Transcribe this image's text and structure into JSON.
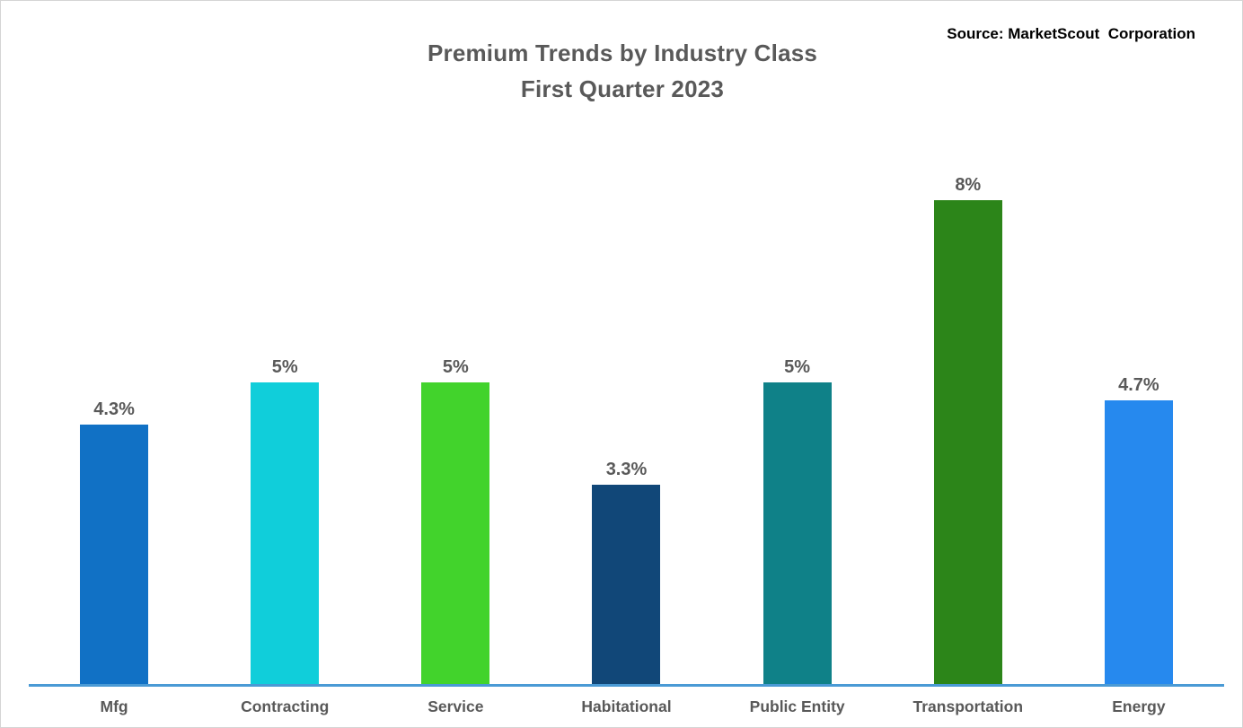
{
  "header": {
    "title_line1": "Premium Trends by Industry Class",
    "title_line2": "First Quarter 2023",
    "source": "Source: MarketScout  Corporation"
  },
  "chart_data": {
    "type": "bar",
    "title": "Premium Trends by Industry Class First Quarter 2023",
    "source": "Source: MarketScout Corporation",
    "categories": [
      "Mfg",
      "Contracting",
      "Service",
      "Habitational",
      "Public Entity",
      "Transportation",
      "Energy"
    ],
    "values": [
      4.3,
      5,
      5,
      3.3,
      5,
      8,
      4.7
    ],
    "value_labels": [
      "4.3%",
      "5%",
      "5%",
      "3.3%",
      "5%",
      "8%",
      "4.7%"
    ],
    "bar_colors": [
      "#1171C5",
      "#10CEDA",
      "#42D32C",
      "#114778",
      "#0F8188",
      "#2C8519",
      "#2689EE"
    ],
    "xlabel": "",
    "ylabel": "",
    "ylim": [
      0,
      8.8
    ],
    "grid": false,
    "legend": false,
    "axis_line_color": "#4A9AD5",
    "label_color": "#595959",
    "title_color": "#595959",
    "source_color": "#000000"
  }
}
